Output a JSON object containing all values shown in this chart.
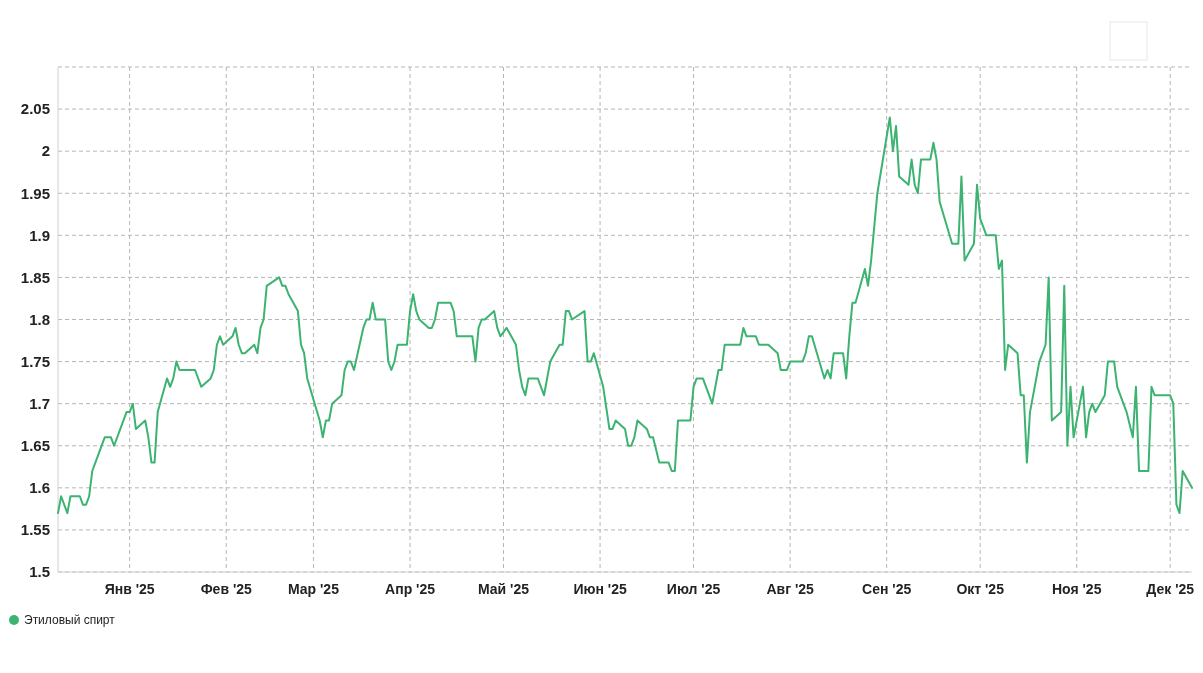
{
  "chart_data": {
    "type": "line",
    "xlim": [
      "2024-12-09",
      "2025-12-08"
    ],
    "ylim": [
      1.5,
      2.1
    ],
    "yticks": [
      1.5,
      1.55,
      1.6,
      1.65,
      1.7,
      1.75,
      1.8,
      1.85,
      1.9,
      1.95,
      2,
      2.05,
      {
        "value": 2.1,
        "label": null
      }
    ],
    "xticks": [
      {
        "value": "2025-01-01",
        "label": "Янв '25"
      },
      {
        "value": "2025-02-01",
        "label": "Фев '25"
      },
      {
        "value": "2025-03-01",
        "label": "Мар '25"
      },
      {
        "value": "2025-04-01",
        "label": "Апр '25"
      },
      {
        "value": "2025-05-01",
        "label": "Май '25"
      },
      {
        "value": "2025-06-01",
        "label": "Июн '25"
      },
      {
        "value": "2025-07-01",
        "label": "Июл '25"
      },
      {
        "value": "2025-08-01",
        "label": "Авг '25"
      },
      {
        "value": "2025-09-01",
        "label": "Сен '25"
      },
      {
        "value": "2025-10-01",
        "label": "Окт '25"
      },
      {
        "value": "2025-11-01",
        "label": "Ноя '25"
      },
      {
        "value": "2025-12-01",
        "label": "Дек '25"
      }
    ],
    "grid": true,
    "legend": "bottom left",
    "marker": "none",
    "line_style": "solid",
    "series": [
      {
        "name": "Этиловый спирт",
        "color": "#3cb371",
        "x": [
          "2024-12-09",
          "2024-12-10",
          "2024-12-12",
          "2024-12-13",
          "2024-12-16",
          "2024-12-17",
          "2024-12-18",
          "2024-12-19",
          "2024-12-20",
          "2024-12-22",
          "2024-12-24",
          "2024-12-26",
          "2024-12-27",
          "2024-12-31",
          "2025-01-01",
          "2025-01-02",
          "2025-01-03",
          "2025-01-06",
          "2025-01-07",
          "2025-01-08",
          "2025-01-09",
          "2025-01-10",
          "2025-01-13",
          "2025-01-14",
          "2025-01-15",
          "2025-01-16",
          "2025-01-17",
          "2025-01-22",
          "2025-01-24",
          "2025-01-27",
          "2025-01-28",
          "2025-01-29",
          "2025-01-30",
          "2025-01-31",
          "2025-02-03",
          "2025-02-04",
          "2025-02-05",
          "2025-02-06",
          "2025-02-07",
          "2025-02-10",
          "2025-02-11",
          "2025-02-12",
          "2025-02-13",
          "2025-02-14",
          "2025-02-18",
          "2025-02-19",
          "2025-02-20",
          "2025-02-21",
          "2025-02-24",
          "2025-02-25",
          "2025-02-26",
          "2025-02-27",
          "2025-03-03",
          "2025-03-04",
          "2025-03-05",
          "2025-03-06",
          "2025-03-07",
          "2025-03-10",
          "2025-03-11",
          "2025-03-12",
          "2025-03-13",
          "2025-03-14",
          "2025-03-17",
          "2025-03-18",
          "2025-03-19",
          "2025-03-20",
          "2025-03-21",
          "2025-03-24",
          "2025-03-25",
          "2025-03-26",
          "2025-03-27",
          "2025-03-28",
          "2025-03-31",
          "2025-04-01",
          "2025-04-02",
          "2025-04-03",
          "2025-04-04",
          "2025-04-07",
          "2025-04-08",
          "2025-04-09",
          "2025-04-10",
          "2025-04-14",
          "2025-04-15",
          "2025-04-16",
          "2025-04-21",
          "2025-04-22",
          "2025-04-23",
          "2025-04-24",
          "2025-04-25",
          "2025-04-28",
          "2025-04-29",
          "2025-04-30",
          "2025-05-02",
          "2025-05-05",
          "2025-05-06",
          "2025-05-07",
          "2025-05-08",
          "2025-05-09",
          "2025-05-12",
          "2025-05-14",
          "2025-05-16",
          "2025-05-19",
          "2025-05-20",
          "2025-05-21",
          "2025-05-22",
          "2025-05-23",
          "2025-05-27",
          "2025-05-28",
          "2025-05-29",
          "2025-05-30",
          "2025-06-02",
          "2025-06-04",
          "2025-06-05",
          "2025-06-06",
          "2025-06-09",
          "2025-06-10",
          "2025-06-11",
          "2025-06-12",
          "2025-06-13",
          "2025-06-16",
          "2025-06-17",
          "2025-06-18",
          "2025-06-20",
          "2025-06-23",
          "2025-06-24",
          "2025-06-25",
          "2025-06-26",
          "2025-06-30",
          "2025-07-01",
          "2025-07-02",
          "2025-07-04",
          "2025-07-07",
          "2025-07-09",
          "2025-07-10",
          "2025-07-11",
          "2025-07-16",
          "2025-07-17",
          "2025-07-18",
          "2025-07-21",
          "2025-07-22",
          "2025-07-25",
          "2025-07-28",
          "2025-07-29",
          "2025-07-31",
          "2025-08-01",
          "2025-08-05",
          "2025-08-06",
          "2025-08-07",
          "2025-08-08",
          "2025-08-12",
          "2025-08-13",
          "2025-08-14",
          "2025-08-15",
          "2025-08-18",
          "2025-08-19",
          "2025-08-20",
          "2025-08-21",
          "2025-08-22",
          "2025-08-25",
          "2025-08-26",
          "2025-08-27",
          "2025-08-29",
          "2025-09-02",
          "2025-09-03",
          "2025-09-04",
          "2025-09-05",
          "2025-09-08",
          "2025-09-09",
          "2025-09-10",
          "2025-09-11",
          "2025-09-12",
          "2025-09-15",
          "2025-09-16",
          "2025-09-17",
          "2025-09-18",
          "2025-09-22",
          "2025-09-24",
          "2025-09-25",
          "2025-09-26",
          "2025-09-29",
          "2025-09-30",
          "2025-10-01",
          "2025-10-03",
          "2025-10-06",
          "2025-10-07",
          "2025-10-08",
          "2025-10-09",
          "2025-10-10",
          "2025-10-13",
          "2025-10-14",
          "2025-10-15",
          "2025-10-16",
          "2025-10-17",
          "2025-10-20",
          "2025-10-22",
          "2025-10-23",
          "2025-10-24",
          "2025-10-27",
          "2025-10-28",
          "2025-10-29",
          "2025-10-30",
          "2025-10-31",
          "2025-11-03",
          "2025-11-04",
          "2025-11-05",
          "2025-11-06",
          "2025-11-07",
          "2025-11-10",
          "2025-11-11",
          "2025-11-13",
          "2025-11-14",
          "2025-11-17",
          "2025-11-19",
          "2025-11-20",
          "2025-11-21",
          "2025-11-24",
          "2025-11-25",
          "2025-11-26",
          "2025-12-01",
          "2025-12-02",
          "2025-12-03",
          "2025-12-04",
          "2025-12-05",
          "2025-12-08"
        ],
        "values": [
          1.57,
          1.59,
          1.57,
          1.59,
          1.59,
          1.58,
          1.58,
          1.59,
          1.62,
          1.64,
          1.66,
          1.66,
          1.65,
          1.69,
          1.69,
          1.7,
          1.67,
          1.68,
          1.66,
          1.63,
          1.63,
          1.69,
          1.73,
          1.72,
          1.73,
          1.75,
          1.74,
          1.74,
          1.72,
          1.73,
          1.74,
          1.77,
          1.78,
          1.77,
          1.78,
          1.79,
          1.77,
          1.76,
          1.76,
          1.77,
          1.76,
          1.79,
          1.8,
          1.84,
          1.85,
          1.84,
          1.84,
          1.83,
          1.81,
          1.77,
          1.76,
          1.73,
          1.68,
          1.66,
          1.68,
          1.68,
          1.7,
          1.71,
          1.74,
          1.75,
          1.75,
          1.74,
          1.79,
          1.8,
          1.8,
          1.82,
          1.8,
          1.8,
          1.75,
          1.74,
          1.75,
          1.77,
          1.77,
          1.81,
          1.83,
          1.81,
          1.8,
          1.79,
          1.79,
          1.8,
          1.82,
          1.82,
          1.81,
          1.78,
          1.78,
          1.75,
          1.79,
          1.8,
          1.8,
          1.81,
          1.79,
          1.78,
          1.79,
          1.77,
          1.74,
          1.72,
          1.71,
          1.73,
          1.73,
          1.71,
          1.75,
          1.77,
          1.77,
          1.81,
          1.81,
          1.8,
          1.81,
          1.75,
          1.75,
          1.76,
          1.72,
          1.67,
          1.67,
          1.68,
          1.67,
          1.65,
          1.65,
          1.66,
          1.68,
          1.67,
          1.66,
          1.66,
          1.63,
          1.63,
          1.62,
          1.62,
          1.68,
          1.68,
          1.72,
          1.73,
          1.73,
          1.7,
          1.74,
          1.74,
          1.77,
          1.77,
          1.79,
          1.78,
          1.78,
          1.77,
          1.77,
          1.76,
          1.74,
          1.74,
          1.75,
          1.75,
          1.76,
          1.78,
          1.78,
          1.73,
          1.74,
          1.73,
          1.76,
          1.76,
          1.73,
          1.78,
          1.82,
          1.82,
          1.86,
          1.84,
          1.87,
          1.95,
          2.04,
          2.0,
          2.03,
          1.97,
          1.96,
          1.99,
          1.96,
          1.95,
          1.99,
          1.99,
          2.01,
          1.99,
          1.94,
          1.89,
          1.89,
          1.97,
          1.87,
          1.89,
          1.96,
          1.92,
          1.9,
          1.9,
          1.86,
          1.87,
          1.74,
          1.77,
          1.76,
          1.71,
          1.71,
          1.63,
          1.69,
          1.75,
          1.77,
          1.85,
          1.68,
          1.69,
          1.84,
          1.65,
          1.72,
          1.66,
          1.72,
          1.66,
          1.69,
          1.7,
          1.69,
          1.71,
          1.75,
          1.75,
          1.72,
          1.69,
          1.66,
          1.72,
          1.62,
          1.62,
          1.72,
          1.71,
          1.71,
          1.7,
          1.58,
          1.57,
          1.62,
          1.6
        ]
      }
    ]
  }
}
